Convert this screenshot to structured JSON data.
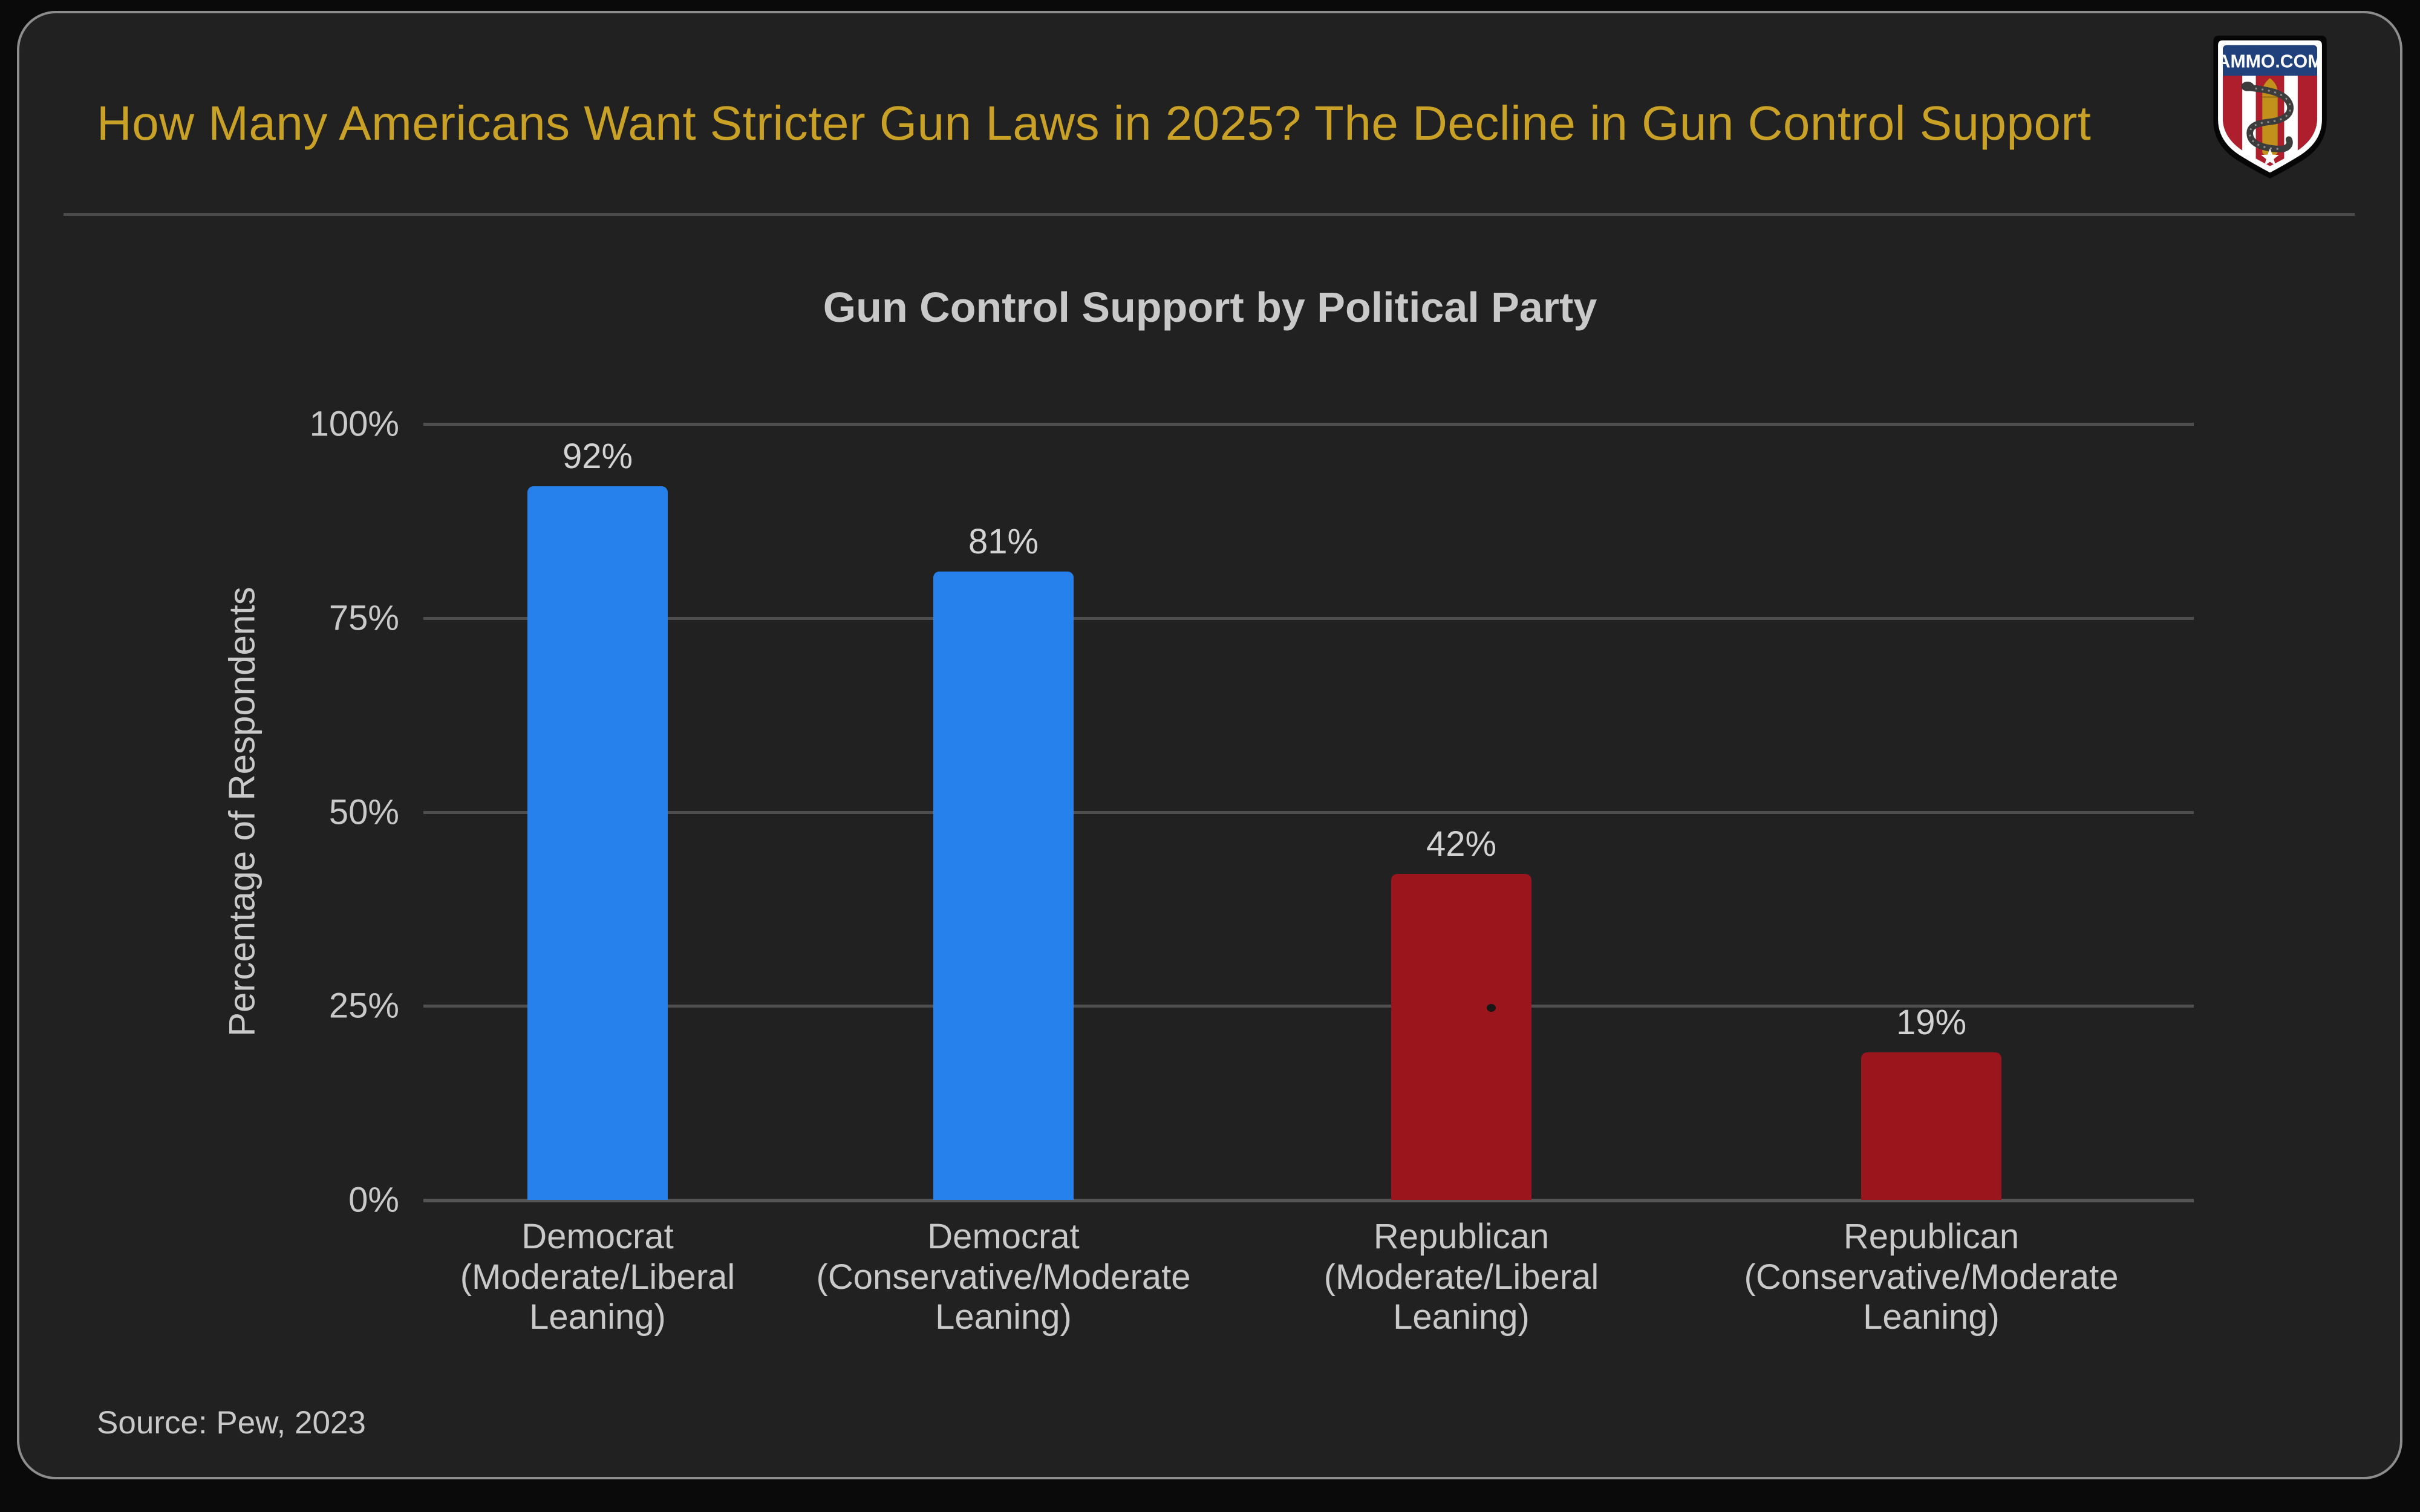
{
  "theme": {
    "page_bg": "#0a0a0a",
    "card_bg": "#212121",
    "card_border": "#8d8d8d",
    "gold_accent": "#C9A127",
    "text_gray": "#c9c9c9",
    "grid_color": "#4e4e4e"
  },
  "header": {
    "title": "How Many Americans Want Stricter Gun Laws in 2025? The Decline in Gun Control Support",
    "logo": {
      "text": "AMMO.COM",
      "navy": "#21417d",
      "stripe_red": "#AF1E2D",
      "bullet_gold": "#C2911C",
      "snake_gray": "#3c3c3c"
    }
  },
  "chart_data": {
    "type": "bar",
    "title": "Gun Control Support by Political Party",
    "xlabel": "",
    "ylabel": "Percentage of Respondents",
    "ylim": [
      0,
      100
    ],
    "grid": true,
    "legend_position": "none",
    "yticks": [
      {
        "label": "0%",
        "value": 0
      },
      {
        "label": "25%",
        "value": 25
      },
      {
        "label": "50%",
        "value": 50
      },
      {
        "label": "75%",
        "value": 75
      },
      {
        "label": "100%",
        "value": 100
      }
    ],
    "categories": [
      "Democrat (Moderate/Liberal Leaning)",
      "Democrat (Conservative/Moderate Leaning)",
      "Republican (Moderate/Liberal Leaning)",
      "Republican (Conservative/Moderate Leaning)"
    ],
    "category_label_lines": [
      "Democrat\n(Moderate/Liberal\nLeaning)",
      "Democrat\n(Conservative/Moderate\nLeaning)",
      "Republican\n(Moderate/Liberal\nLeaning)",
      "Republican\n(Conservative/Moderate\nLeaning)"
    ],
    "values": [
      92,
      81,
      42,
      19
    ],
    "value_labels": [
      "92%",
      "81%",
      "42%",
      "19%"
    ],
    "bar_colors": [
      "#2681EC",
      "#2681EC",
      "#9A151C",
      "#9A151C"
    ]
  },
  "footer": {
    "source": "Source: Pew, 2023"
  }
}
